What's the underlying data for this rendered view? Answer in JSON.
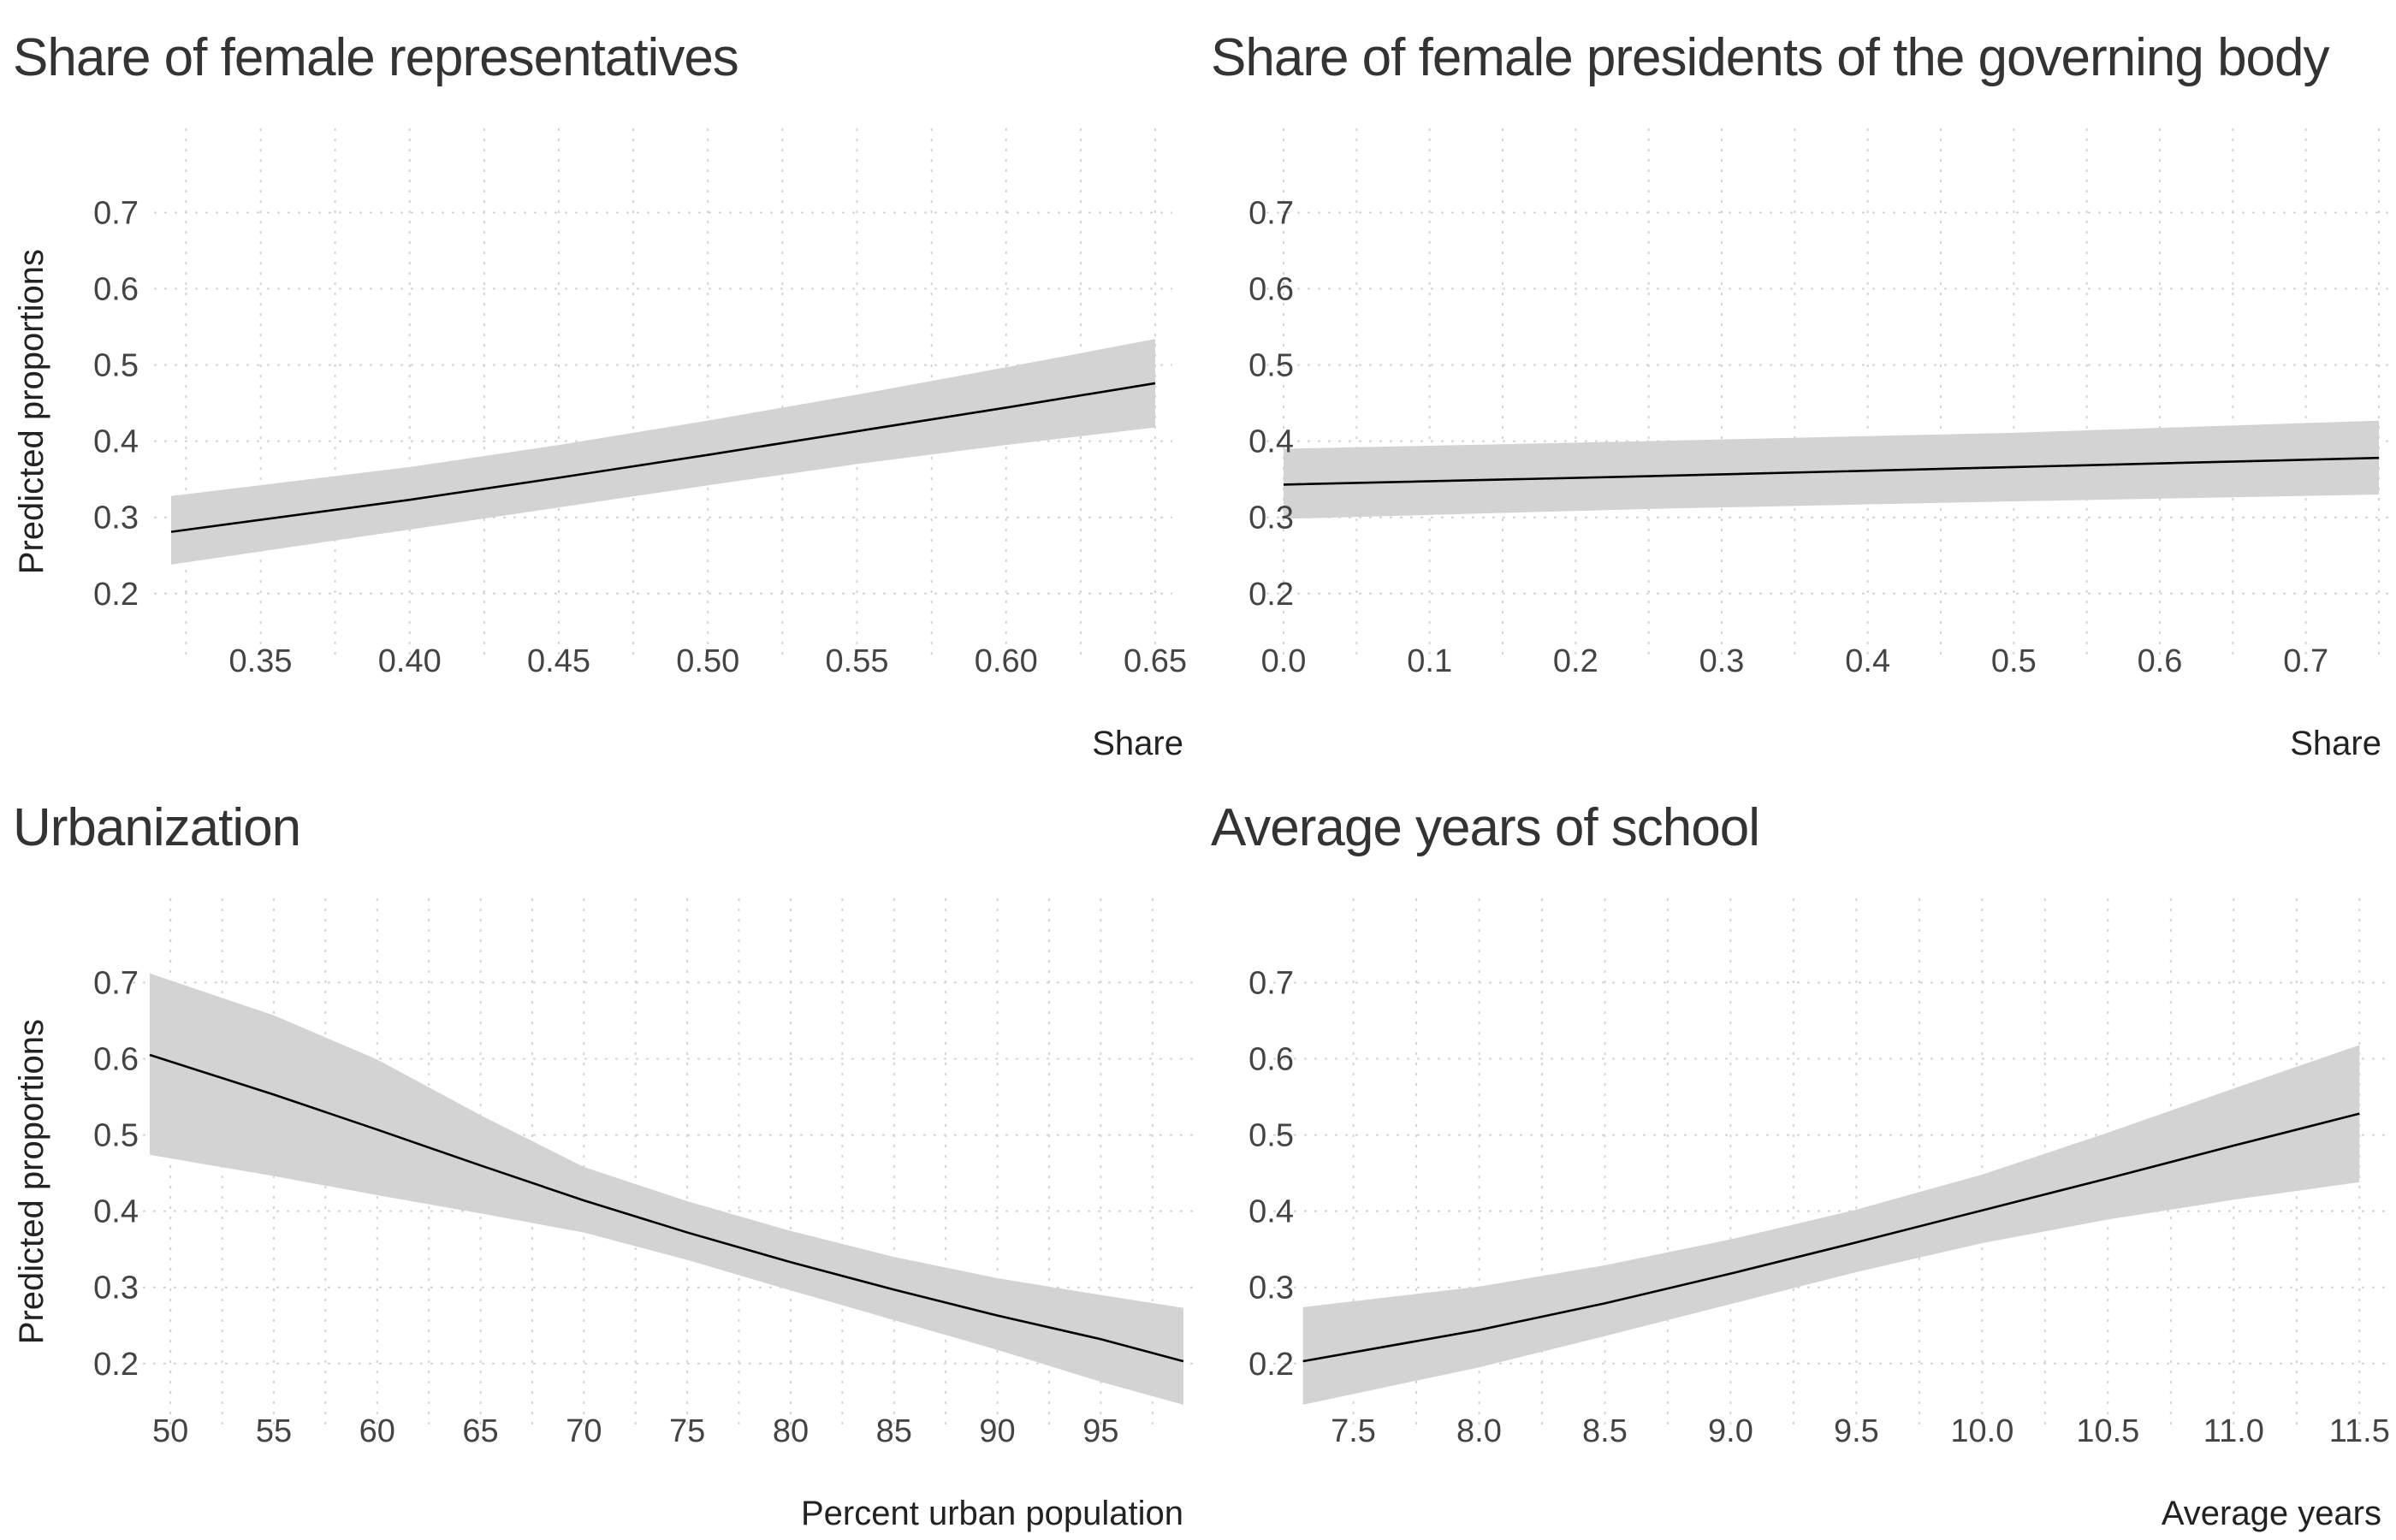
{
  "chart_data": [
    {
      "type": "line",
      "title": "Share of female representatives",
      "xlabel": "Share",
      "ylabel": "Predicted proportions",
      "xlim": [
        0.32,
        0.65
      ],
      "ylim": [
        0.12,
        0.76
      ],
      "x_ticks": [
        0.35,
        0.4,
        0.45,
        0.5,
        0.55,
        0.6,
        0.65
      ],
      "x_tick_labels": [
        "0.35",
        "0.40",
        "0.45",
        "0.50",
        "0.55",
        "0.60",
        "0.65"
      ],
      "y_ticks": [
        0.2,
        0.3,
        0.4,
        0.5,
        0.6,
        0.7
      ],
      "y_tick_labels": [
        "0.2",
        "0.3",
        "0.4",
        "0.5",
        "0.6",
        "0.7"
      ],
      "x_minor": [
        0.325,
        0.375,
        0.425,
        0.475,
        0.525,
        0.575,
        0.625
      ],
      "grid": true,
      "series": [
        {
          "x": [
            0.32,
            0.4,
            0.45,
            0.5,
            0.55,
            0.6,
            0.65
          ],
          "y": [
            0.281,
            0.323,
            0.352,
            0.382,
            0.413,
            0.444,
            0.476
          ],
          "lower": [
            0.238,
            0.284,
            0.313,
            0.342,
            0.37,
            0.395,
            0.418
          ],
          "upper": [
            0.328,
            0.366,
            0.395,
            0.427,
            0.461,
            0.497,
            0.534
          ]
        }
      ]
    },
    {
      "type": "line",
      "title": "Share of female presidents of the governing body",
      "xlabel": "Share",
      "ylabel": "",
      "xlim": [
        0.0,
        0.75
      ],
      "ylim": [
        0.12,
        0.76
      ],
      "x_ticks": [
        0.0,
        0.1,
        0.2,
        0.3,
        0.4,
        0.5,
        0.6,
        0.7
      ],
      "x_tick_labels": [
        "0.0",
        "0.1",
        "0.2",
        "0.3",
        "0.4",
        "0.5",
        "0.6",
        "0.7"
      ],
      "y_ticks": [
        0.2,
        0.3,
        0.4,
        0.5,
        0.6,
        0.7
      ],
      "y_tick_labels": [
        "0.2",
        "0.3",
        "0.4",
        "0.5",
        "0.6",
        "0.7"
      ],
      "x_minor": [
        0.05,
        0.15,
        0.25,
        0.35,
        0.45,
        0.55,
        0.65,
        0.75
      ],
      "grid": true,
      "series": [
        {
          "x": [
            0.0,
            0.25,
            0.5,
            0.75
          ],
          "y": [
            0.343,
            0.354,
            0.366,
            0.378
          ],
          "lower": [
            0.298,
            0.311,
            0.321,
            0.33
          ],
          "upper": [
            0.39,
            0.4,
            0.411,
            0.427
          ]
        }
      ]
    },
    {
      "type": "line",
      "title": "Urbanization",
      "xlabel": "Percent urban population",
      "ylabel": "Predicted proportions",
      "xlim": [
        49,
        99
      ],
      "ylim": [
        0.12,
        0.76
      ],
      "x_ticks": [
        50,
        55,
        60,
        65,
        70,
        75,
        80,
        85,
        90,
        95
      ],
      "x_tick_labels": [
        "50",
        "55",
        "60",
        "65",
        "70",
        "75",
        "80",
        "85",
        "90",
        "95"
      ],
      "y_ticks": [
        0.2,
        0.3,
        0.4,
        0.5,
        0.6,
        0.7
      ],
      "y_tick_labels": [
        "0.2",
        "0.3",
        "0.4",
        "0.5",
        "0.6",
        "0.7"
      ],
      "x_minor": [
        52.5,
        57.5,
        62.5,
        67.5,
        72.5,
        77.5,
        82.5,
        87.5,
        92.5,
        97.5
      ],
      "grid": true,
      "series": [
        {
          "x": [
            49,
            55,
            60,
            65,
            70,
            75,
            80,
            85,
            90,
            95,
            99
          ],
          "y": [
            0.605,
            0.553,
            0.507,
            0.46,
            0.414,
            0.372,
            0.333,
            0.297,
            0.263,
            0.232,
            0.203
          ],
          "lower": [
            0.474,
            0.446,
            0.421,
            0.397,
            0.372,
            0.336,
            0.296,
            0.257,
            0.218,
            0.176,
            0.146
          ],
          "upper": [
            0.712,
            0.657,
            0.599,
            0.526,
            0.458,
            0.413,
            0.374,
            0.34,
            0.312,
            0.29,
            0.273
          ]
        }
      ]
    },
    {
      "type": "line",
      "title": "Average years of school",
      "xlabel": "Average years",
      "ylabel": "",
      "xlim": [
        7.25,
        11.55
      ],
      "ylim": [
        0.12,
        0.76
      ],
      "x_ticks": [
        7.5,
        8.0,
        8.5,
        9.0,
        9.5,
        10.0,
        10.5,
        11.0,
        11.5
      ],
      "x_tick_labels": [
        "7.5",
        "8.0",
        "8.5",
        "9.0",
        "9.5",
        "10.0",
        "10.5",
        "11.0",
        "11.5"
      ],
      "y_ticks": [
        0.2,
        0.3,
        0.4,
        0.5,
        0.6,
        0.7
      ],
      "y_tick_labels": [
        "0.2",
        "0.3",
        "0.4",
        "0.5",
        "0.6",
        "0.7"
      ],
      "x_minor": [
        7.75,
        8.25,
        8.75,
        9.25,
        9.75,
        10.25,
        10.75,
        11.25
      ],
      "grid": true,
      "series": [
        {
          "x": [
            7.3,
            8.0,
            8.5,
            9.0,
            9.5,
            10.0,
            10.5,
            11.0,
            11.5
          ],
          "y": [
            0.203,
            0.244,
            0.279,
            0.318,
            0.359,
            0.401,
            0.443,
            0.486,
            0.528
          ],
          "lower": [
            0.146,
            0.195,
            0.236,
            0.278,
            0.32,
            0.358,
            0.389,
            0.415,
            0.438
          ],
          "upper": [
            0.274,
            0.301,
            0.329,
            0.363,
            0.402,
            0.448,
            0.503,
            0.561,
            0.618
          ]
        }
      ]
    }
  ]
}
